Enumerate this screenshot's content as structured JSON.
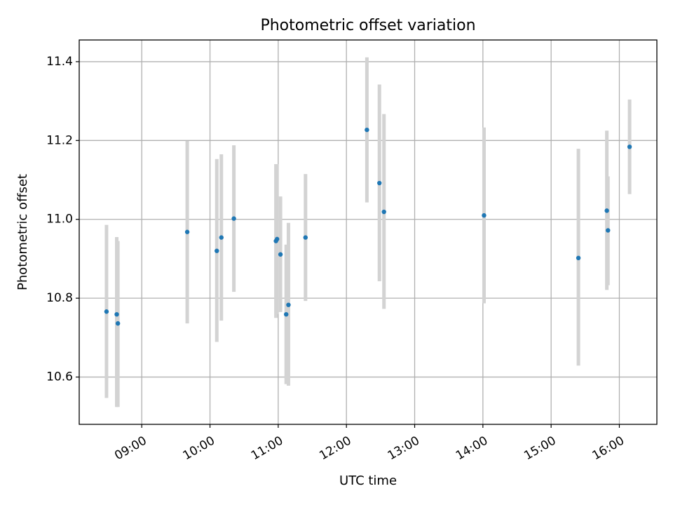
{
  "chart_data": {
    "type": "scatter",
    "title": "Photometric offset variation",
    "xlabel": "UTC time",
    "ylabel": "Photometric offset",
    "x_range": [
      "08:05",
      "16:33"
    ],
    "ylim": [
      10.48,
      11.455
    ],
    "x_ticks": [
      "09:00",
      "10:00",
      "11:00",
      "12:00",
      "13:00",
      "14:00",
      "15:00",
      "16:00"
    ],
    "y_ticks": [
      10.6,
      10.8,
      11.0,
      11.2,
      11.4
    ],
    "y_tick_labels": [
      "10.6",
      "10.8",
      "11.0",
      "11.2",
      "11.4"
    ],
    "grid": true,
    "marker_color": "#1f77b4",
    "errorbar_color": "#d3d3d3",
    "points": [
      {
        "time": "08:29",
        "offset": 10.766,
        "err_low": 10.547,
        "err_high": 10.986
      },
      {
        "time": "08:38",
        "offset": 10.759,
        "err_low": 10.524,
        "err_high": 10.955
      },
      {
        "time": "08:39",
        "offset": 10.736,
        "err_low": 10.524,
        "err_high": 10.945
      },
      {
        "time": "09:40",
        "offset": 10.968,
        "err_low": 10.736,
        "err_high": 11.199
      },
      {
        "time": "10:06",
        "offset": 10.92,
        "err_low": 10.689,
        "err_high": 11.153
      },
      {
        "time": "10:10",
        "offset": 10.954,
        "err_low": 10.743,
        "err_high": 11.165
      },
      {
        "time": "10:21",
        "offset": 11.002,
        "err_low": 10.816,
        "err_high": 11.188
      },
      {
        "time": "10:58",
        "offset": 10.945,
        "err_low": 10.75,
        "err_high": 11.14
      },
      {
        "time": "10:59",
        "offset": 10.95,
        "err_low": 10.76,
        "err_high": 11.14
      },
      {
        "time": "11:02",
        "offset": 10.911,
        "err_low": 10.765,
        "err_high": 11.058
      },
      {
        "time": "11:07",
        "offset": 10.759,
        "err_low": 10.582,
        "err_high": 10.936
      },
      {
        "time": "11:09",
        "offset": 10.783,
        "err_low": 10.578,
        "err_high": 10.991
      },
      {
        "time": "11:24",
        "offset": 10.954,
        "err_low": 10.793,
        "err_high": 11.115
      },
      {
        "time": "12:18",
        "offset": 11.227,
        "err_low": 11.043,
        "err_high": 11.411
      },
      {
        "time": "12:29",
        "offset": 11.092,
        "err_low": 10.843,
        "err_high": 11.342
      },
      {
        "time": "12:33",
        "offset": 11.019,
        "err_low": 10.773,
        "err_high": 11.267
      },
      {
        "time": "14:01",
        "offset": 11.01,
        "err_low": 10.787,
        "err_high": 11.233
      },
      {
        "time": "15:24",
        "offset": 10.902,
        "err_low": 10.629,
        "err_high": 11.179
      },
      {
        "time": "15:49",
        "offset": 11.022,
        "err_low": 10.821,
        "err_high": 11.225
      },
      {
        "time": "15:50",
        "offset": 10.972,
        "err_low": 10.833,
        "err_high": 11.109
      },
      {
        "time": "16:09",
        "offset": 11.184,
        "err_low": 11.064,
        "err_high": 11.304
      }
    ]
  }
}
